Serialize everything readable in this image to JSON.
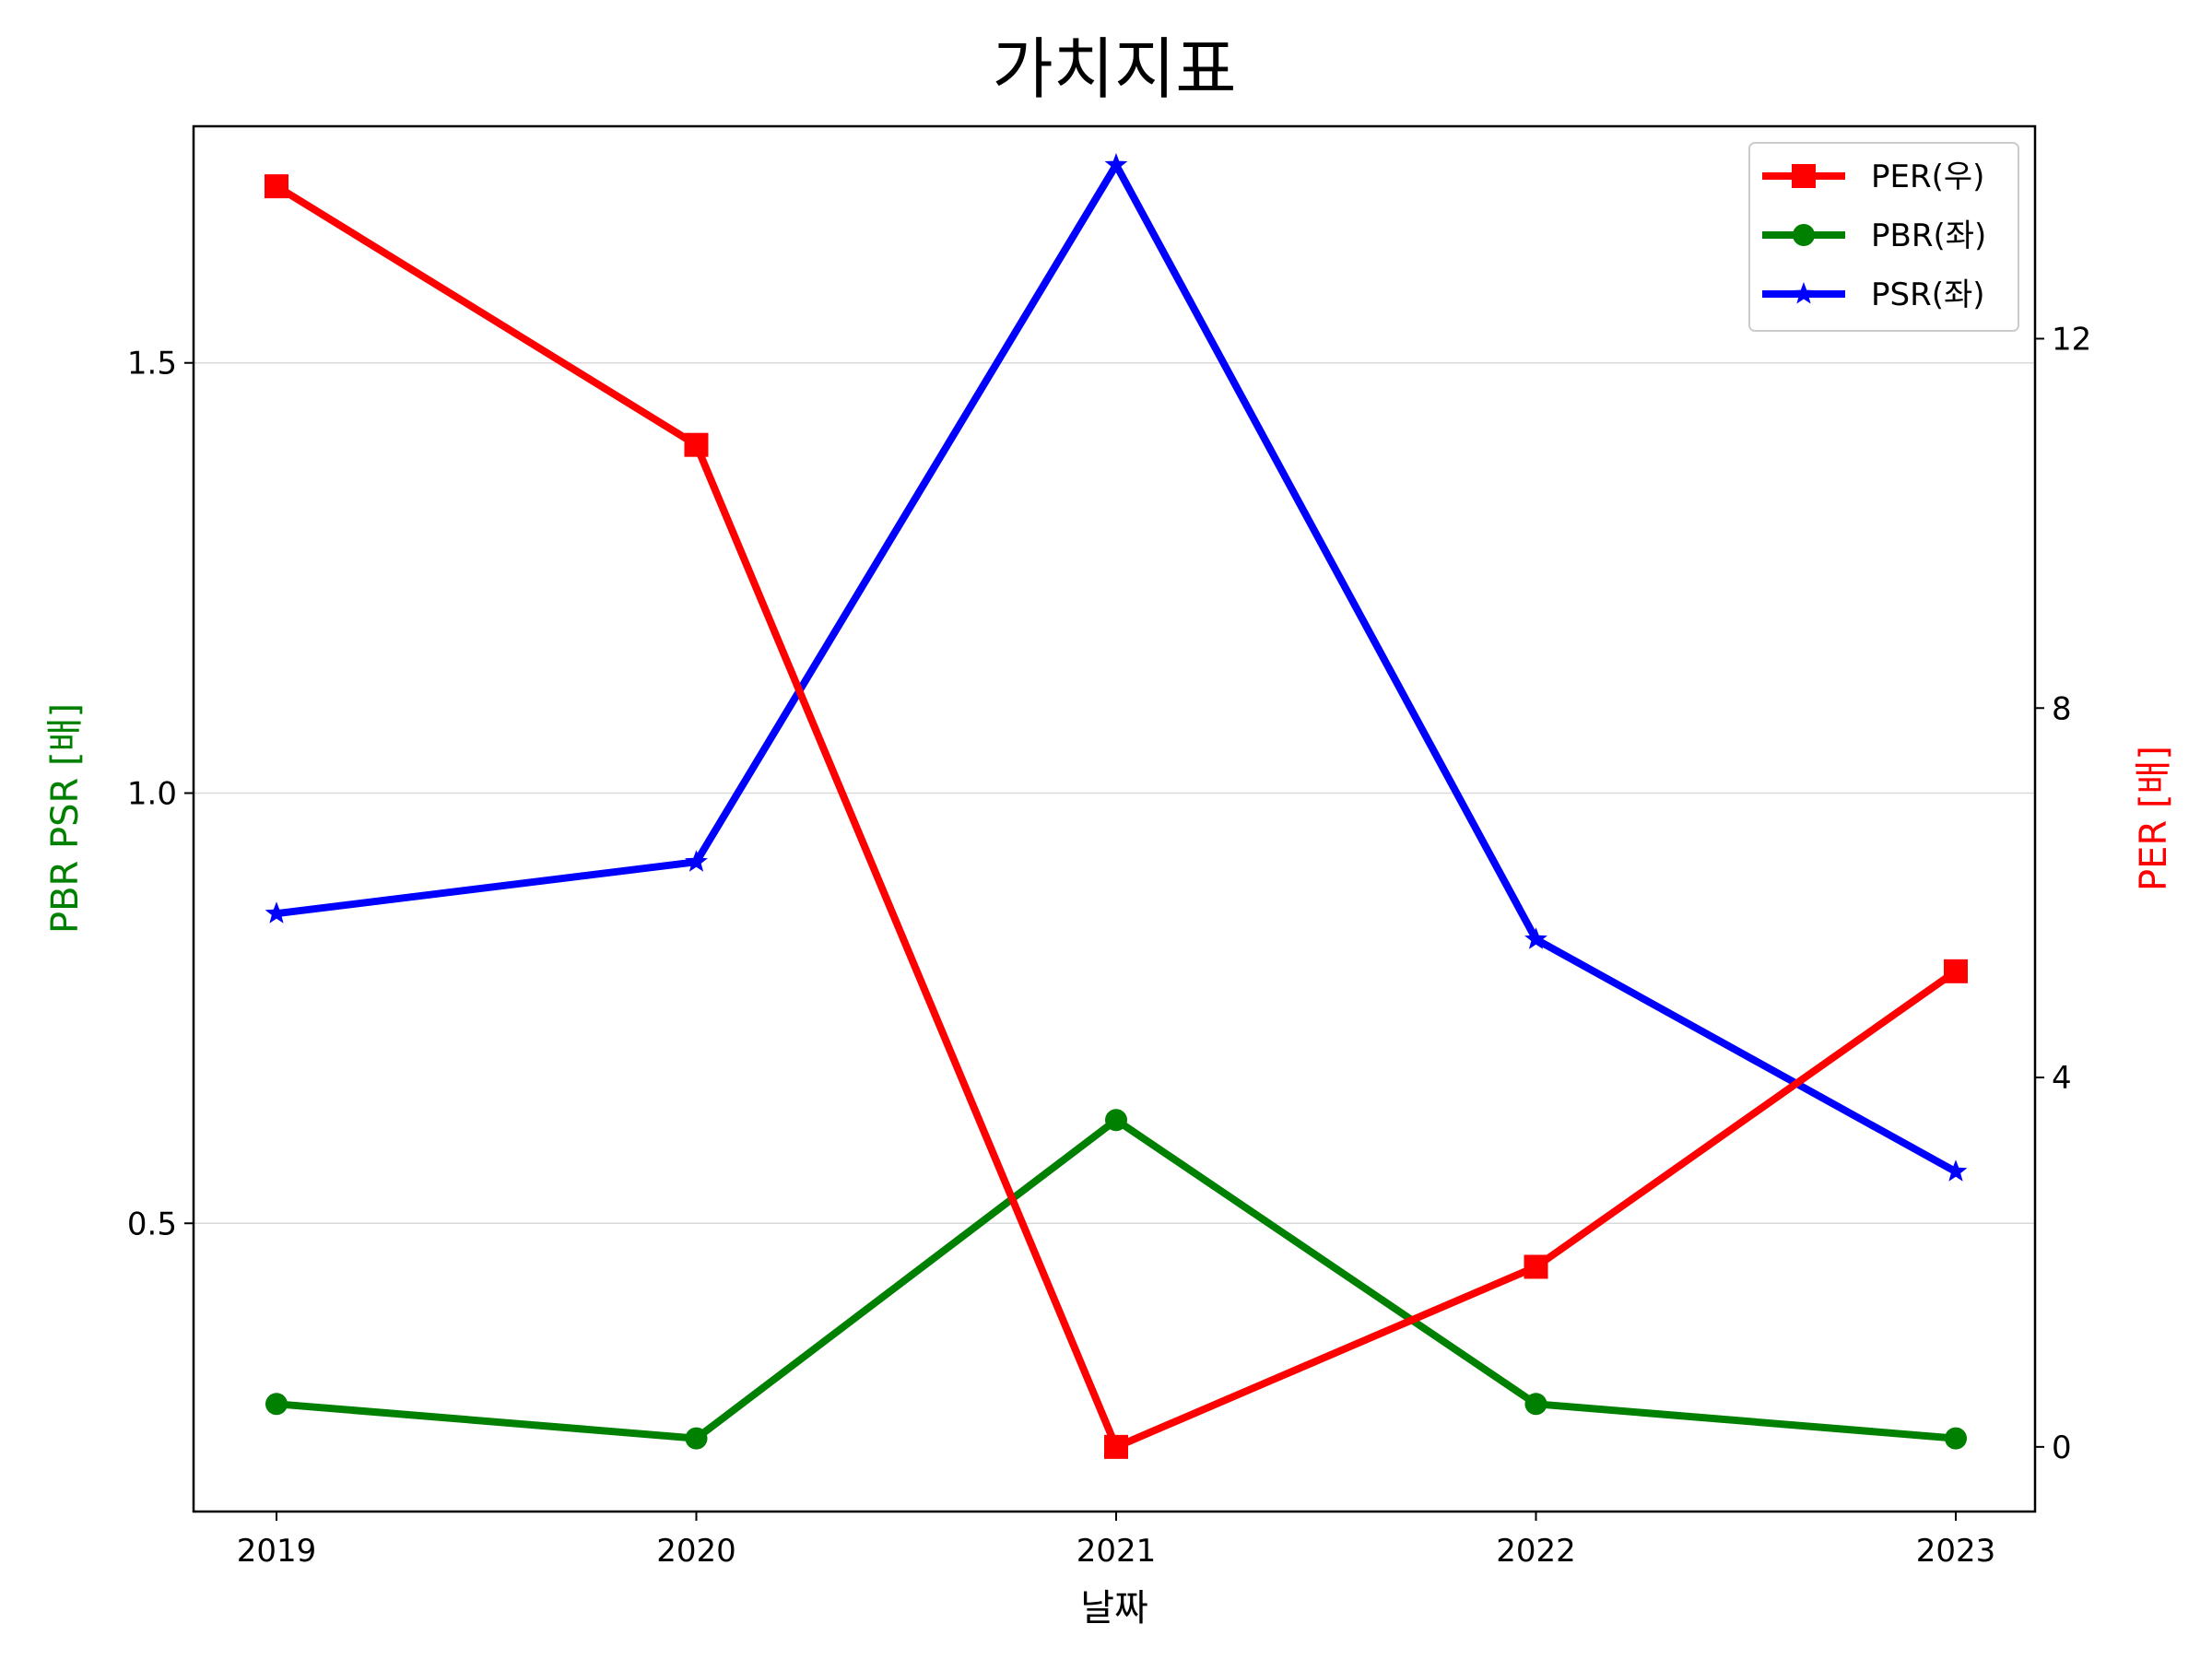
{
  "chart_data": {
    "type": "line",
    "title": "가치지표",
    "xlabel": "날짜",
    "ylabel_left": "PBR PSR [배]",
    "ylabel_right": "PER [배]",
    "x": [
      "2019",
      "2020",
      "2021",
      "2022",
      "2023"
    ],
    "ylim_left": [
      0.165,
      1.775
    ],
    "ylim_right": [
      -0.7,
      14.3
    ],
    "yticks_left": [
      "0.5",
      "1.0",
      "1.5"
    ],
    "yticks_right": [
      "0",
      "4",
      "8",
      "12"
    ],
    "grid": "horizontal (left axis)",
    "legend_position": "top-right",
    "colors": {
      "ylabel_left": "#008000",
      "ylabel_right": "#ff0000"
    },
    "series": [
      {
        "name": "PER(우)",
        "axis": "right",
        "color": "#ff0000",
        "marker": "square",
        "values": [
          13.65,
          10.85,
          0.0,
          1.95,
          5.15
        ]
      },
      {
        "name": "PBR(좌)",
        "axis": "left",
        "color": "#008000",
        "marker": "circle",
        "values": [
          0.29,
          0.25,
          0.62,
          0.29,
          0.25
        ]
      },
      {
        "name": "PSR(좌)",
        "axis": "left",
        "color": "#0000ff",
        "marker": "star",
        "values": [
          0.86,
          0.92,
          1.73,
          0.83,
          0.56
        ]
      }
    ]
  }
}
